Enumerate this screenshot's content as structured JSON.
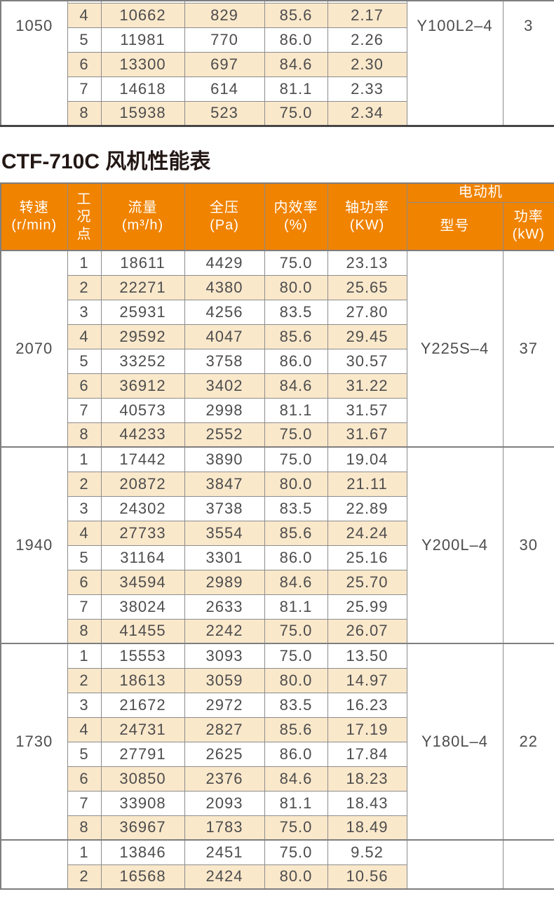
{
  "title": "CTF-710C 风机性能表",
  "colors": {
    "header_orange": "#F08300",
    "row_tan": "#FAE8CB",
    "grid_gray": "#8C8C8C",
    "data_text": "#4D4D4D",
    "title_black": "#231815"
  },
  "previous_table": {
    "speed": "1050",
    "motor_model": "Y100L2–4",
    "motor_power": "3",
    "rows": [
      [
        "4",
        "10662",
        "829",
        "85.6",
        "2.17"
      ],
      [
        "5",
        "11981",
        "770",
        "86.0",
        "2.26"
      ],
      [
        "6",
        "13300",
        "697",
        "84.6",
        "2.30"
      ],
      [
        "7",
        "14618",
        "614",
        "81.1",
        "2.33"
      ],
      [
        "8",
        "15938",
        "523",
        "75.0",
        "2.34"
      ]
    ]
  },
  "performance_table": {
    "headers": {
      "speed": "转速\n(r/min)",
      "operating_point": "工\n况\n点",
      "flow": "流量\n(m³/h)",
      "pressure": "全压\n(Pa)",
      "efficiency": "内效率\n(%)",
      "shaft_power": "轴功率\n(KW)",
      "motor": "电动机",
      "motor_model": "型号",
      "motor_power": "功率\n(kW)"
    },
    "blocks": [
      {
        "speed": "2070",
        "motor_model": "Y225S–4",
        "motor_power": "37",
        "shaded": false,
        "rows": [
          [
            "1",
            "18611",
            "4429",
            "75.0",
            "23.13"
          ],
          [
            "2",
            "22271",
            "4380",
            "80.0",
            "25.65"
          ],
          [
            "3",
            "25931",
            "4256",
            "83.5",
            "27.80"
          ],
          [
            "4",
            "29592",
            "4047",
            "85.6",
            "29.45"
          ],
          [
            "5",
            "33252",
            "3758",
            "86.0",
            "30.57"
          ],
          [
            "6",
            "36912",
            "3402",
            "84.6",
            "31.22"
          ],
          [
            "7",
            "40573",
            "2998",
            "81.1",
            "31.57"
          ],
          [
            "8",
            "44233",
            "2552",
            "75.0",
            "31.67"
          ]
        ]
      },
      {
        "speed": "1940",
        "motor_model": "Y200L–4",
        "motor_power": "30",
        "shaded": true,
        "rows": [
          [
            "1",
            "17442",
            "3890",
            "75.0",
            "19.04"
          ],
          [
            "2",
            "20872",
            "3847",
            "80.0",
            "21.11"
          ],
          [
            "3",
            "24302",
            "3738",
            "83.5",
            "22.89"
          ],
          [
            "4",
            "27733",
            "3554",
            "85.6",
            "24.24"
          ],
          [
            "5",
            "31164",
            "3301",
            "86.0",
            "25.16"
          ],
          [
            "6",
            "34594",
            "2989",
            "84.6",
            "25.70"
          ],
          [
            "7",
            "38024",
            "2633",
            "81.1",
            "25.99"
          ],
          [
            "8",
            "41455",
            "2242",
            "75.0",
            "26.07"
          ]
        ]
      },
      {
        "speed": "1730",
        "motor_model": "Y180L–4",
        "motor_power": "22",
        "shaded": false,
        "rows": [
          [
            "1",
            "15553",
            "3093",
            "75.0",
            "13.50"
          ],
          [
            "2",
            "18613",
            "3059",
            "80.0",
            "14.97"
          ],
          [
            "3",
            "21672",
            "2972",
            "83.5",
            "16.23"
          ],
          [
            "4",
            "24731",
            "2827",
            "85.6",
            "17.19"
          ],
          [
            "5",
            "27791",
            "2625",
            "86.0",
            "17.84"
          ],
          [
            "6",
            "30850",
            "2376",
            "84.6",
            "18.23"
          ],
          [
            "7",
            "33908",
            "2093",
            "81.1",
            "18.43"
          ],
          [
            "8",
            "36967",
            "1783",
            "75.0",
            "18.49"
          ]
        ]
      },
      {
        "speed": "",
        "motor_model": "",
        "motor_power": "",
        "shaded": true,
        "rows": [
          [
            "1",
            "13846",
            "2451",
            "75.0",
            "9.52"
          ],
          [
            "2",
            "16568",
            "2424",
            "80.0",
            "10.56"
          ]
        ]
      }
    ]
  }
}
